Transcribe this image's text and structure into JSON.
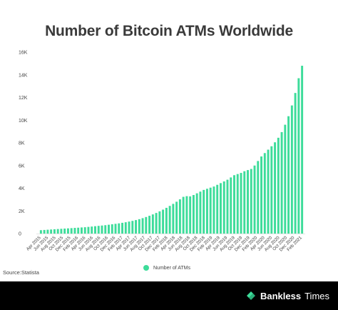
{
  "chart_data": {
    "type": "bar",
    "title": "Number of Bitcoin ATMs Worldwide",
    "xlabel": "",
    "ylabel": "",
    "ylim": [
      0,
      16000
    ],
    "yticks": [
      0,
      2000,
      4000,
      6000,
      8000,
      10000,
      12000,
      14000,
      16000
    ],
    "ytick_labels": [
      "0",
      "2K",
      "4K",
      "6K",
      "8K",
      "10K",
      "12K",
      "14K",
      "16K"
    ],
    "grid": false,
    "legend_position": "bottom-center",
    "series": [
      {
        "name": "Number of ATMs",
        "color": "#3ddc9a",
        "values": [
          300,
          320,
          340,
          360,
          380,
          400,
          420,
          440,
          460,
          480,
          500,
          520,
          540,
          560,
          590,
          620,
          650,
          680,
          710,
          740,
          780,
          820,
          860,
          900,
          950,
          1000,
          1060,
          1120,
          1190,
          1270,
          1360,
          1460,
          1570,
          1690,
          1820,
          1960,
          2110,
          2270,
          2440,
          2620,
          2810,
          3020,
          3240,
          3300,
          3280,
          3400,
          3550,
          3700,
          3850,
          3950,
          4050,
          4150,
          4300,
          4450,
          4600,
          4750,
          4950,
          5150,
          5250,
          5350,
          5500,
          5600,
          5700,
          6000,
          6400,
          6800,
          7100,
          7400,
          7700,
          8050,
          8450,
          8950,
          9600,
          10350,
          11300,
          12400,
          13700,
          14800
        ]
      }
    ],
    "x_tick_labels": [
      "Apr 2015",
      "Jun 2015",
      "Aug 2015",
      "Oct 2015",
      "Dec 2015",
      "Feb 2016",
      "Apr 2016",
      "Jun 2016",
      "Aug 2016",
      "Oct 2016",
      "Dec 2016",
      "Feb 2017",
      "Apr 2017",
      "Jun 2017",
      "Aug 2017",
      "Oct 2017",
      "Dec 2017",
      "Feb 2018",
      "Apr 2018",
      "Jun 2018",
      "Aug 2018",
      "Oct 2018",
      "Dec 2018",
      "Feb 2019",
      "Apr 2019",
      "Jun 2019",
      "Aug 2019",
      "Oct 2019",
      "Dec 2019",
      "Feb 2020",
      "Apr 2020",
      "Jun 2020",
      "Aug 2020",
      "Oct 2020",
      "Dec 2020",
      "Feb 2021"
    ]
  },
  "legend": {
    "label": "Number of ATMs",
    "color": "#3ddc9a"
  },
  "source": "Source:Statista",
  "brand": {
    "name_bold": "Bankless",
    "name_regular": "Times",
    "icon": "bankless-times-logo-icon",
    "color": "#3ddc9a"
  }
}
